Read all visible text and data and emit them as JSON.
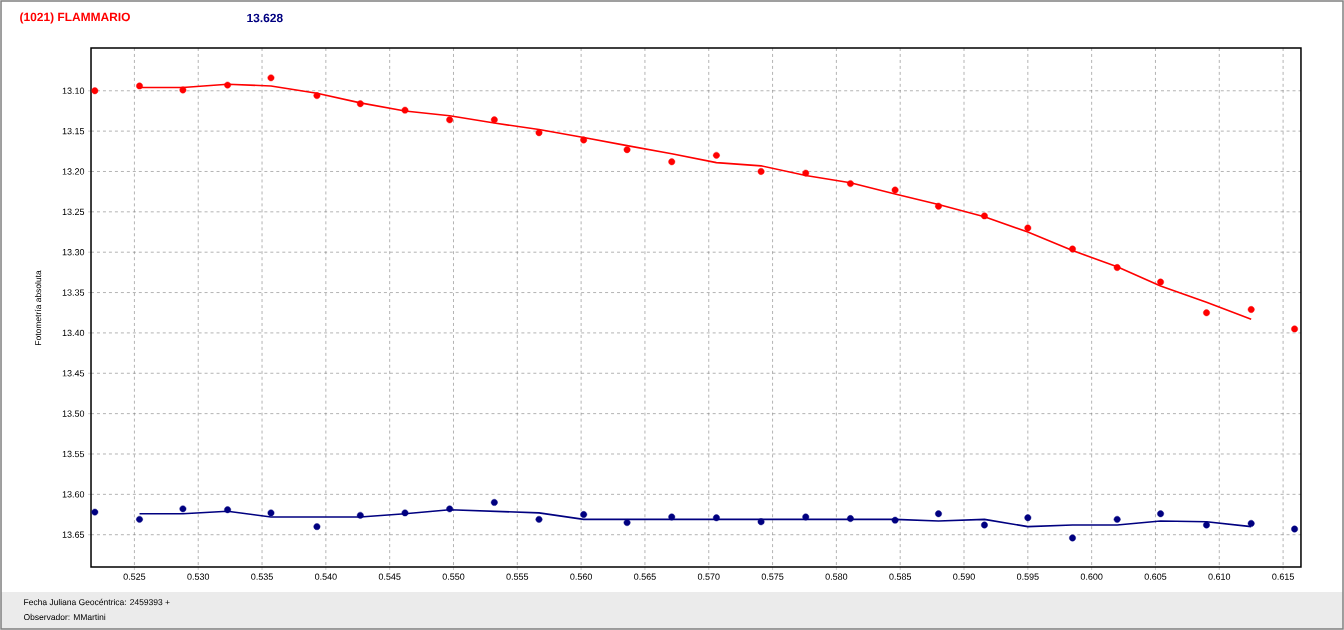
{
  "chart_data": {
    "type": "scatter",
    "title": "(1021) FLAMMARIO",
    "subtitle": "13.628",
    "ylabel": "Fotometría absoluta",
    "annotations": [
      "Fecha Juliana Geocéntrica: 2459393 +",
      "Observador: MMartini"
    ],
    "xlim": [
      0.5216,
      0.6164
    ],
    "ylim": [
      13.69,
      13.047
    ],
    "xticks": [
      {
        "value": 0.525,
        "label": "0.525"
      },
      {
        "value": 0.53,
        "label": "0.530"
      },
      {
        "value": 0.535,
        "label": "0.535"
      },
      {
        "value": 0.54,
        "label": "0.540"
      },
      {
        "value": 0.545,
        "label": "0.545"
      },
      {
        "value": 0.55,
        "label": "0.550"
      },
      {
        "value": 0.555,
        "label": "0.555"
      },
      {
        "value": 0.56,
        "label": "0.560"
      },
      {
        "value": 0.565,
        "label": "0.565"
      },
      {
        "value": 0.57,
        "label": "0.570"
      },
      {
        "value": 0.575,
        "label": "0.575"
      },
      {
        "value": 0.58,
        "label": "0.580"
      },
      {
        "value": 0.585,
        "label": "0.585"
      },
      {
        "value": 0.59,
        "label": "0.590"
      },
      {
        "value": 0.595,
        "label": "0.595"
      },
      {
        "value": 0.6,
        "label": "0.600"
      },
      {
        "value": 0.605,
        "label": "0.605"
      },
      {
        "value": 0.61,
        "label": "0.610"
      },
      {
        "value": 0.615,
        "label": "0.615"
      }
    ],
    "yticks": [
      {
        "value": 13.1,
        "label": "13.10"
      },
      {
        "value": 13.15,
        "label": "13.15"
      },
      {
        "value": 13.2,
        "label": "13.20"
      },
      {
        "value": 13.25,
        "label": "13.25"
      },
      {
        "value": 13.3,
        "label": "13.30"
      },
      {
        "value": 13.35,
        "label": "13.35"
      },
      {
        "value": 13.4,
        "label": "13.40"
      },
      {
        "value": 13.45,
        "label": "13.45"
      },
      {
        "value": 13.5,
        "label": "13.50"
      },
      {
        "value": 13.55,
        "label": "13.55"
      },
      {
        "value": 13.6,
        "label": "13.60"
      },
      {
        "value": 13.65,
        "label": "13.65"
      }
    ],
    "grid": true,
    "tick_labels": "xy",
    "series": [
      {
        "marker": "circle",
        "color": "#ff0000",
        "x": [
          0.5219,
          0.5254,
          0.5288,
          0.5323,
          0.5357,
          0.5393,
          0.5427,
          0.5462,
          0.5497,
          0.5532,
          0.5567,
          0.5602,
          0.5636,
          0.5671,
          0.5706,
          0.5741,
          0.5776,
          0.5811,
          0.5846,
          0.588,
          0.5916,
          0.595,
          0.5985,
          0.602,
          0.6054,
          0.609,
          0.6125,
          0.6159
        ],
        "values": [
          13.1,
          13.094,
          13.099,
          13.093,
          13.084,
          13.106,
          13.116,
          13.124,
          13.136,
          13.136,
          13.152,
          13.161,
          13.173,
          13.188,
          13.18,
          13.2,
          13.202,
          13.215,
          13.223,
          13.243,
          13.255,
          13.27,
          13.296,
          13.319,
          13.337,
          13.375,
          13.371,
          13.395
        ]
      },
      {
        "type": "line",
        "marker": "none",
        "color": "#ff0000",
        "x": [
          0.5254,
          0.5288,
          0.5323,
          0.5357,
          0.5393,
          0.5427,
          0.5462,
          0.5497,
          0.5532,
          0.5567,
          0.5602,
          0.5636,
          0.5671,
          0.5706,
          0.5741,
          0.5776,
          0.5811,
          0.5846,
          0.588,
          0.5916,
          0.595,
          0.5985,
          0.602,
          0.6054,
          0.609,
          0.6125
        ],
        "values": [
          13.096,
          13.096,
          13.092,
          13.094,
          13.103,
          13.115,
          13.125,
          13.131,
          13.14,
          13.148,
          13.158,
          13.168,
          13.178,
          13.189,
          13.193,
          13.205,
          13.214,
          13.228,
          13.241,
          13.256,
          13.275,
          13.298,
          13.318,
          13.342,
          13.362,
          13.383
        ]
      },
      {
        "marker": "circle",
        "color": "#000080",
        "x": [
          0.5219,
          0.5254,
          0.5288,
          0.5323,
          0.5357,
          0.5393,
          0.5427,
          0.5462,
          0.5497,
          0.5532,
          0.5567,
          0.5602,
          0.5636,
          0.5671,
          0.5706,
          0.5741,
          0.5776,
          0.5811,
          0.5846,
          0.588,
          0.5916,
          0.595,
          0.5985,
          0.602,
          0.6054,
          0.609,
          0.6125,
          0.6159
        ],
        "values": [
          13.622,
          13.631,
          13.618,
          13.619,
          13.623,
          13.64,
          13.626,
          13.623,
          13.618,
          13.61,
          13.631,
          13.625,
          13.635,
          13.628,
          13.629,
          13.634,
          13.628,
          13.63,
          13.632,
          13.624,
          13.638,
          13.629,
          13.654,
          13.631,
          13.624,
          13.638,
          13.636,
          13.643
        ]
      },
      {
        "type": "line",
        "marker": "none",
        "color": "#000080",
        "x": [
          0.5254,
          0.5288,
          0.5323,
          0.5357,
          0.5393,
          0.5427,
          0.5462,
          0.5497,
          0.5532,
          0.5567,
          0.5602,
          0.5636,
          0.5671,
          0.5706,
          0.5741,
          0.5776,
          0.5811,
          0.5846,
          0.588,
          0.5916,
          0.595,
          0.5985,
          0.602,
          0.6054,
          0.609,
          0.6125
        ],
        "values": [
          13.624,
          13.624,
          13.621,
          13.628,
          13.628,
          13.628,
          13.624,
          13.619,
          13.621,
          13.623,
          13.631,
          13.631,
          13.631,
          13.631,
          13.631,
          13.631,
          13.631,
          13.631,
          13.633,
          13.631,
          13.64,
          13.638,
          13.638,
          13.633,
          13.634,
          13.64
        ]
      }
    ]
  }
}
